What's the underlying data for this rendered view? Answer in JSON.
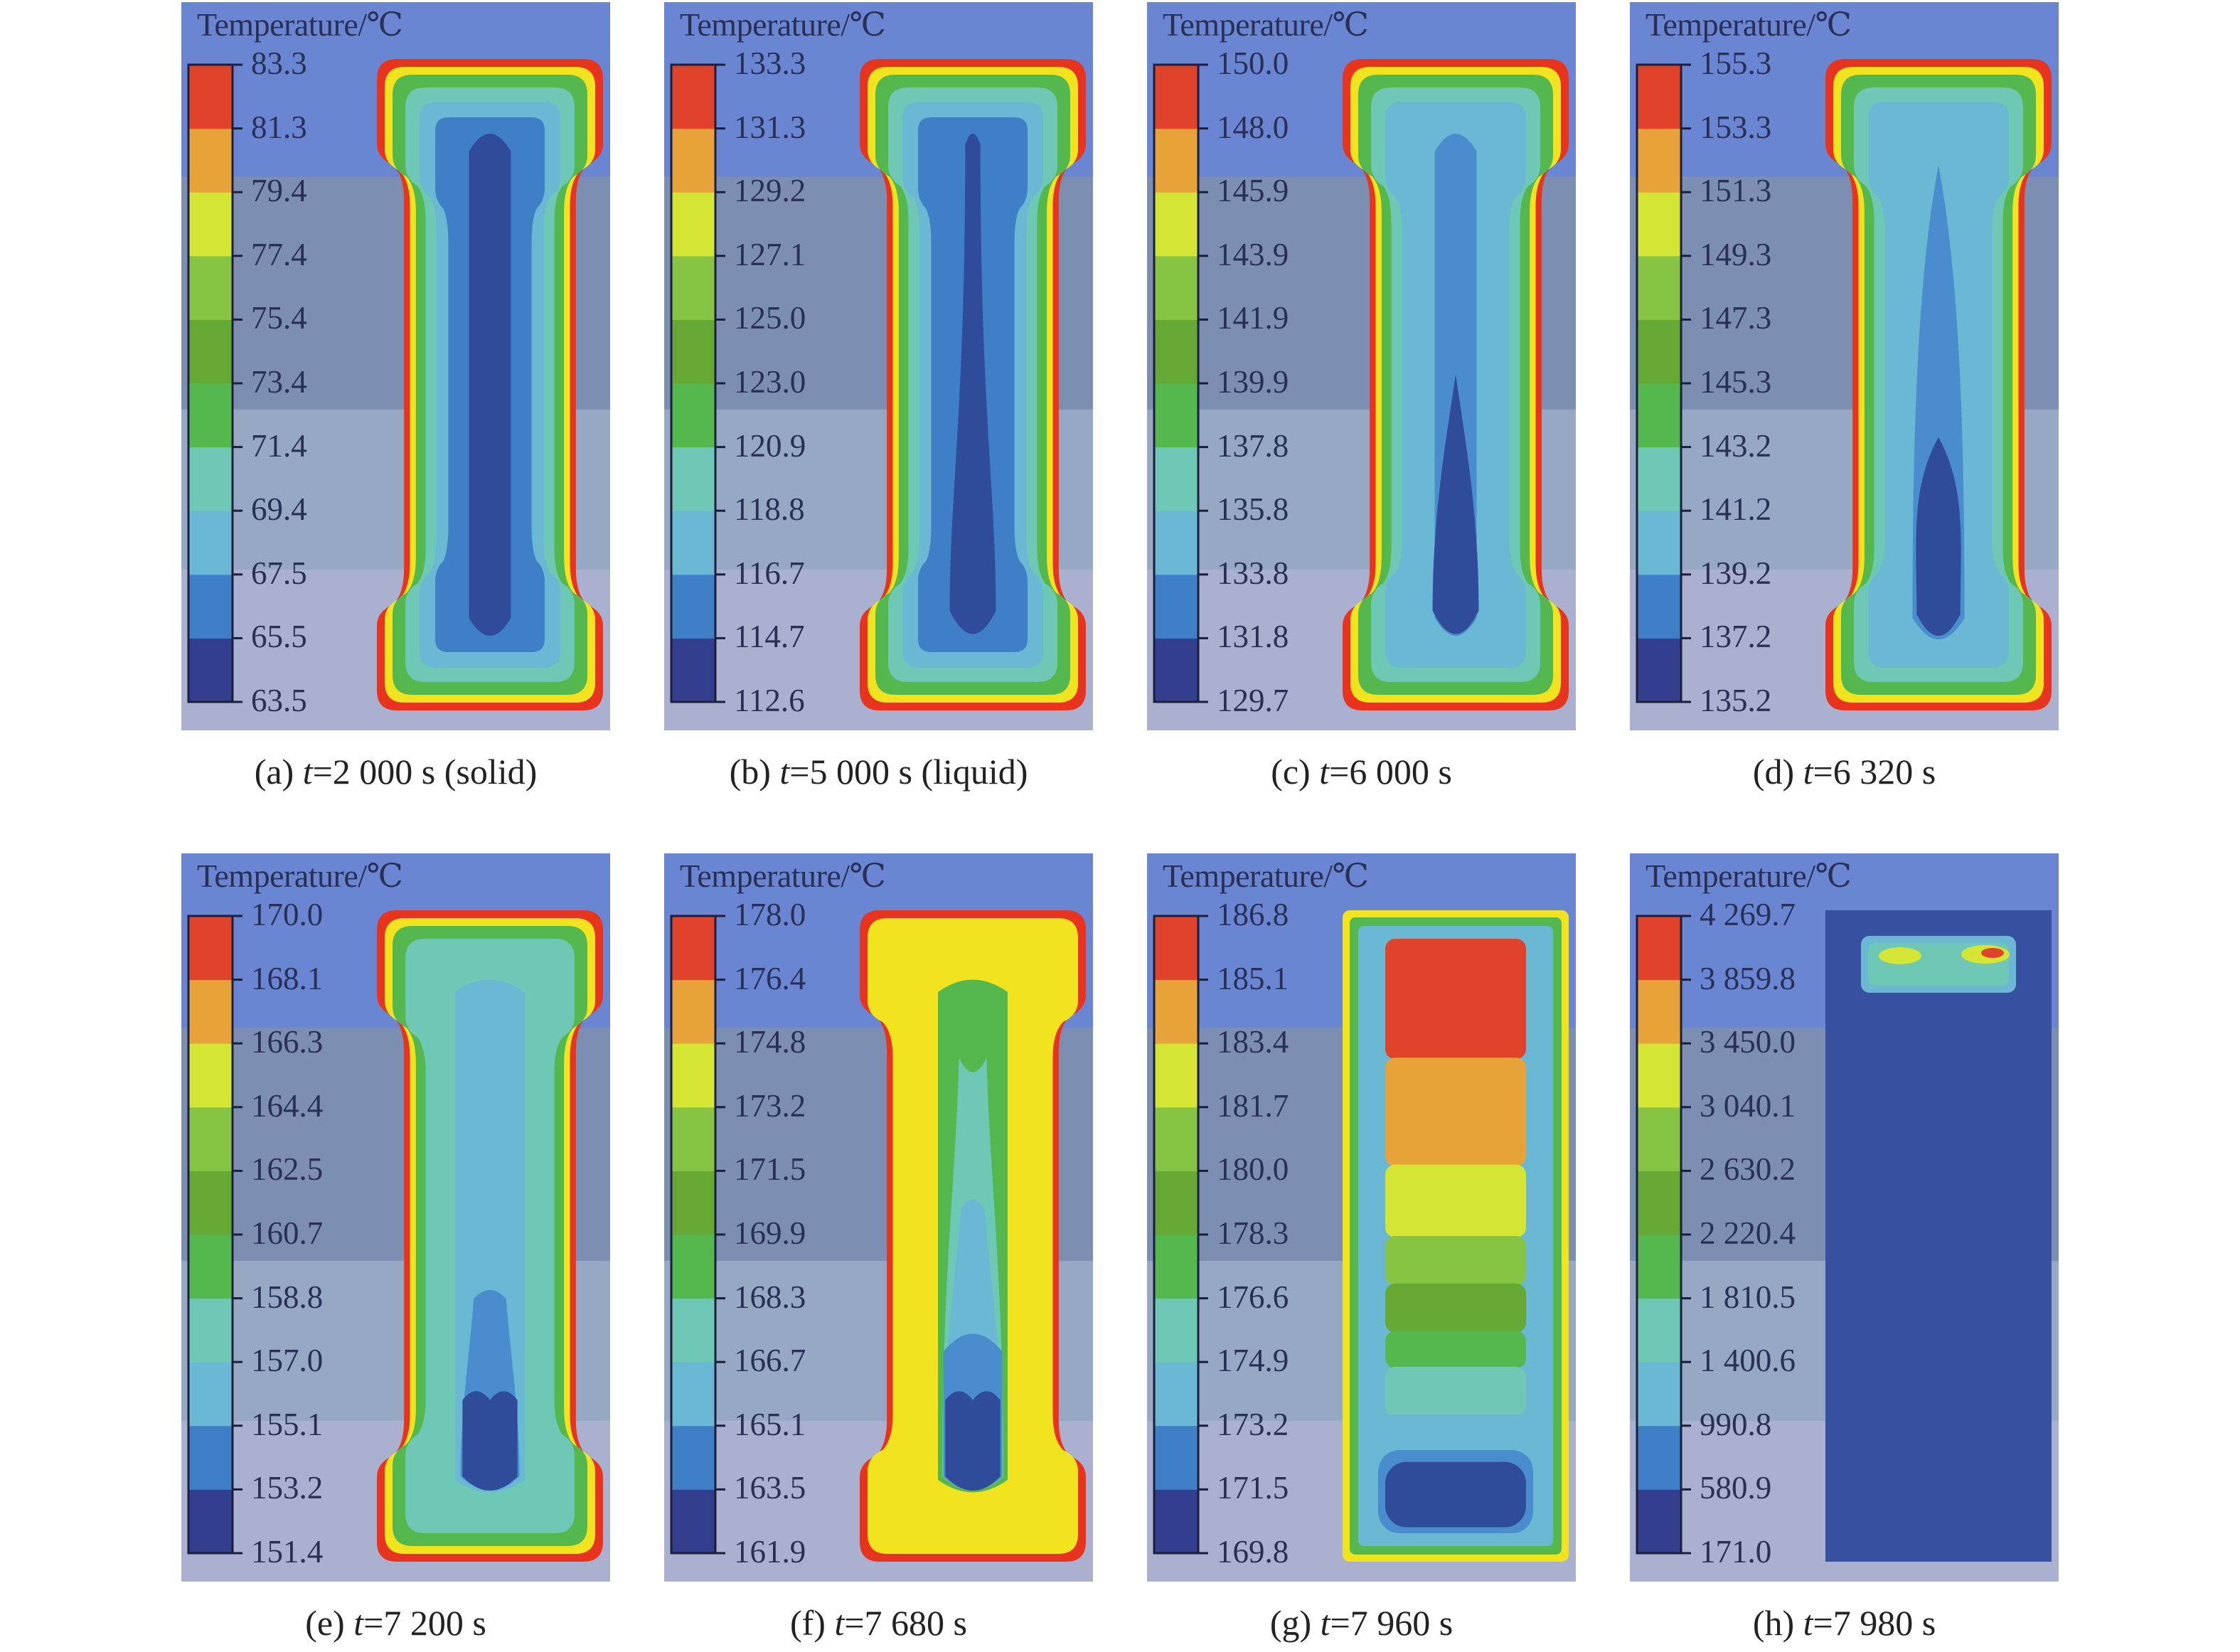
{
  "legend_title": "Temperature/℃",
  "colors": {
    "legend": [
      "#333e8f",
      "#3e7fc8",
      "#6ab8d3",
      "#6ec8b5",
      "#55b84e",
      "#65a834",
      "#88c443",
      "#d4e534",
      "#e8a23a",
      "#e0432a"
    ],
    "background_bands": [
      "#6a86d2",
      "#7c8fb3",
      "#96a8c4",
      "#aab0cf"
    ],
    "outline": "#e8331f"
  },
  "panels": [
    {
      "id": "a",
      "caption": {
        "prefix": "(a) ",
        "var": "t",
        "rest": "=2 000 s (solid)"
      },
      "ticks": [
        "83.3",
        "81.3",
        "79.4",
        "77.4",
        "75.4",
        "73.4",
        "71.4",
        "69.4",
        "67.5",
        "65.5",
        "63.5"
      ],
      "shape": "bone",
      "layers": [
        {
          "color": "#e8331f"
        },
        {
          "color": "#f1e41f"
        },
        {
          "color": "#55b84e"
        },
        {
          "color": "#6ec8b5"
        },
        {
          "color": "#6ab8d3"
        },
        {
          "color": "#3e7fc8"
        },
        {
          "color": "#2f4b9a",
          "core": "column"
        }
      ]
    },
    {
      "id": "b",
      "caption": {
        "prefix": "(b) ",
        "var": "t",
        "rest": "=5 000 s (liquid)"
      },
      "ticks": [
        "133.3",
        "131.3",
        "129.2",
        "127.1",
        "125.0",
        "123.0",
        "120.9",
        "118.8",
        "116.7",
        "114.7",
        "112.6"
      ],
      "shape": "bone",
      "layers": [
        {
          "color": "#e8331f"
        },
        {
          "color": "#f1e41f"
        },
        {
          "color": "#55b84e"
        },
        {
          "color": "#6ec8b5"
        },
        {
          "color": "#6ab8d3"
        },
        {
          "color": "#3e7fc8"
        },
        {
          "color": "#2f4b9a",
          "core": "narrow-top"
        }
      ]
    },
    {
      "id": "c",
      "caption": {
        "prefix": "(c) ",
        "var": "t",
        "rest": "=6 000 s"
      },
      "ticks": [
        "150.0",
        "148.0",
        "145.9",
        "143.9",
        "141.9",
        "139.9",
        "137.8",
        "135.8",
        "133.8",
        "131.8",
        "129.7"
      ],
      "shape": "bone",
      "layers": [
        {
          "color": "#e8331f"
        },
        {
          "color": "#f1e41f"
        },
        {
          "color": "#55b84e"
        },
        {
          "color": "#6ec8b5"
        },
        {
          "color": "#6ab8d3"
        },
        {
          "color": "#4a8dcf",
          "core": "column"
        },
        {
          "color": "#2f4b9a",
          "core": "drop"
        }
      ]
    },
    {
      "id": "d",
      "caption": {
        "prefix": "(d) ",
        "var": "t",
        "rest": "=6 320 s"
      },
      "ticks": [
        "155.3",
        "153.3",
        "151.3",
        "149.3",
        "147.3",
        "145.3",
        "143.2",
        "141.2",
        "139.2",
        "137.2",
        "135.2"
      ],
      "shape": "bone",
      "layers": [
        {
          "color": "#e8331f"
        },
        {
          "color": "#f1e41f"
        },
        {
          "color": "#55b84e"
        },
        {
          "color": "#6ec8b5"
        },
        {
          "color": "#6ab8d3"
        },
        {
          "color": "#4a8dcf",
          "core": "flame"
        },
        {
          "color": "#2f4b9a",
          "core": "small-drop"
        }
      ]
    },
    {
      "id": "e",
      "caption": {
        "prefix": "(e) ",
        "var": "t",
        "rest": "=7 200 s"
      },
      "ticks": [
        "170.0",
        "168.1",
        "166.3",
        "164.4",
        "162.5",
        "160.7",
        "158.8",
        "157.0",
        "155.1",
        "153.2",
        "151.4"
      ],
      "shape": "bone",
      "layers": [
        {
          "color": "#e8331f"
        },
        {
          "color": "#f1e41f"
        },
        {
          "color": "#55b84e"
        },
        {
          "color": "#6ec8b5"
        },
        {
          "color": "#6ab8d3",
          "core": "full"
        },
        {
          "color": "#4a8dcf",
          "core": "dome"
        },
        {
          "color": "#2f4b9a",
          "core": "pool"
        }
      ]
    },
    {
      "id": "f",
      "caption": {
        "prefix": "(f) ",
        "var": "t",
        "rest": "=7 680 s"
      },
      "ticks": [
        "178.0",
        "176.4",
        "174.8",
        "173.2",
        "171.5",
        "169.9",
        "168.3",
        "166.7",
        "165.1",
        "163.5",
        "161.9"
      ],
      "shape": "bone",
      "layers": [
        {
          "color": "#e8331f"
        },
        {
          "color": "#f1e41f"
        },
        {
          "color": "#55b84e",
          "core": "full"
        },
        {
          "color": "#6ec8b5",
          "core": "bell"
        },
        {
          "color": "#6ab8d3",
          "core": "lower"
        },
        {
          "color": "#4a8dcf",
          "core": "lower-small"
        },
        {
          "color": "#2f4b9a",
          "core": "pool"
        }
      ]
    },
    {
      "id": "g",
      "caption": {
        "prefix": "(g) ",
        "var": "t",
        "rest": "=7 960 s"
      },
      "ticks": [
        "186.8",
        "185.1",
        "183.4",
        "181.7",
        "180.0",
        "178.3",
        "176.6",
        "174.9",
        "173.2",
        "171.5",
        "169.8"
      ],
      "shape": "graded"
    },
    {
      "id": "h",
      "caption": {
        "prefix": "(h) ",
        "var": "t",
        "rest": "=7 980 s"
      },
      "ticks": [
        "4 269.7",
        "3 859.8",
        "3 450.0",
        "3 040.1",
        "2 630.2",
        "2 220.4",
        "1 810.5",
        "1 400.6",
        "990.8",
        "580.9",
        "171.0"
      ],
      "shape": "block"
    }
  ]
}
